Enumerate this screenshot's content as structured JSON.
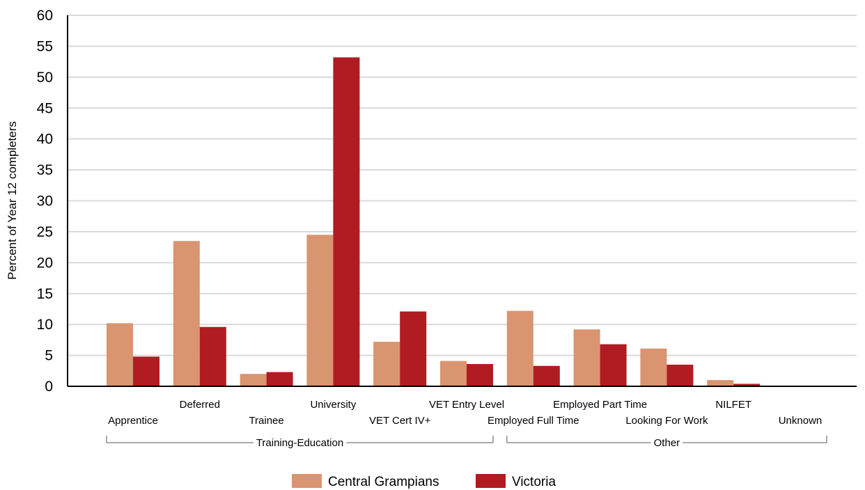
{
  "chart_data": {
    "type": "bar",
    "ylabel": "Percent of Year 12 completers",
    "ylim": [
      0,
      60
    ],
    "yticks": [
      0,
      5,
      10,
      15,
      20,
      25,
      30,
      35,
      40,
      45,
      50,
      55,
      60
    ],
    "grid": true,
    "legend_position": "bottom-center",
    "categories": [
      "Apprentice",
      "Deferred",
      "Trainee",
      "University",
      "VET Cert IV+",
      "VET Entry Level",
      "Employed Full Time",
      "Employed Part Time",
      "Looking For Work",
      "NILFET",
      "Unknown"
    ],
    "groups": [
      {
        "label": "Training-Education",
        "from": 0,
        "to": 5
      },
      {
        "label": "Other",
        "from": 6,
        "to": 10
      }
    ],
    "series": [
      {
        "name": "Central Grampians",
        "color": "#d99470",
        "values": [
          10.2,
          23.5,
          2.0,
          24.5,
          7.2,
          4.1,
          12.2,
          9.2,
          6.1,
          1.0,
          0.0
        ]
      },
      {
        "name": "Victoria",
        "color": "#b01c22",
        "values": [
          4.8,
          9.6,
          2.3,
          53.2,
          12.1,
          3.6,
          3.3,
          6.8,
          3.5,
          0.4,
          0.0
        ]
      }
    ]
  }
}
